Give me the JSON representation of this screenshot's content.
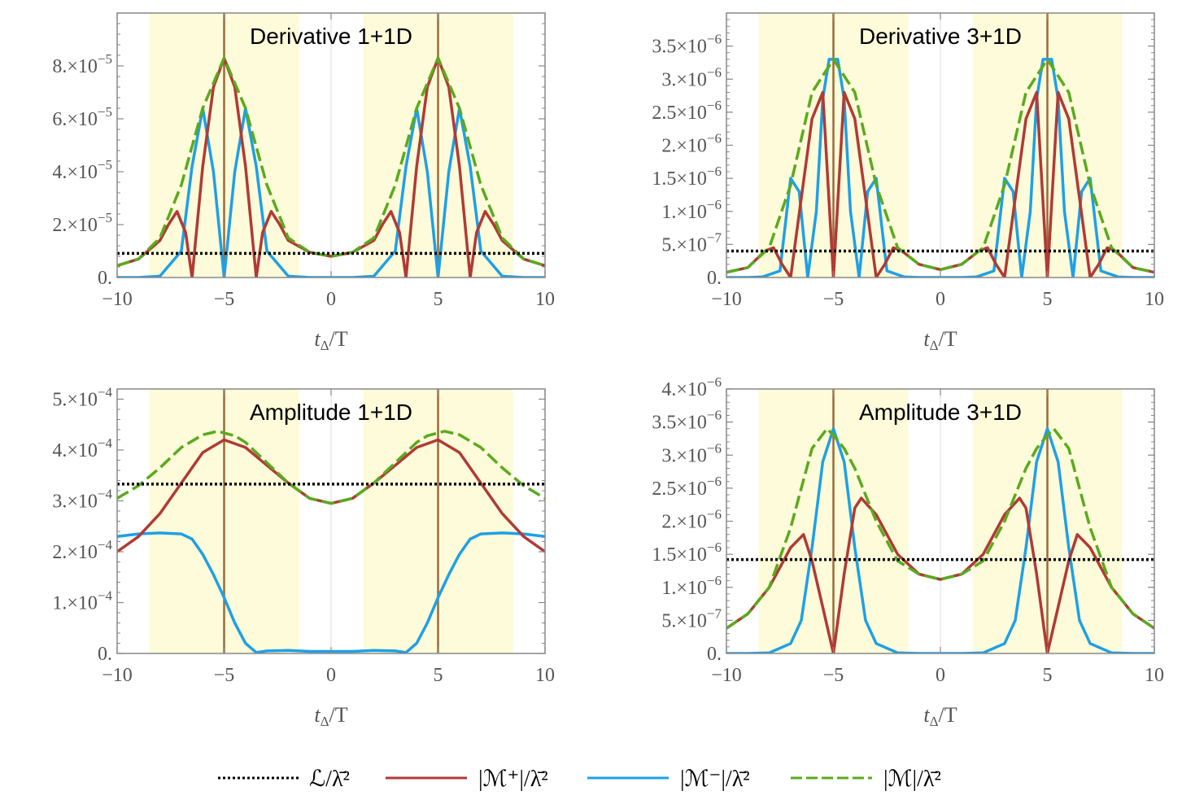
{
  "legend": [
    {
      "key": "L",
      "label": "ℒ/λ̄²",
      "color": "#000000",
      "dash": "dotted"
    },
    {
      "key": "Mp",
      "label": "|ℳ⁺|/λ̄²",
      "color": "#b03a35",
      "dash": "solid"
    },
    {
      "key": "Mm",
      "label": "|ℳ⁻|/λ̄²",
      "color": "#1ea0e6",
      "dash": "solid"
    },
    {
      "key": "M",
      "label": "|ℳ|/λ̄²",
      "color": "#5aaa1e",
      "dash": "dashed"
    }
  ],
  "colors": {
    "shade": "#fdfbd9",
    "vline": "#9c6a3a",
    "frame": "#888888",
    "tick_text": "#555555"
  },
  "chart_data": [
    {
      "type": "line",
      "title": "Derivative 1+1D",
      "xlabel": "tΔ/T",
      "xlim": [
        -10,
        10
      ],
      "ylim": [
        0,
        0.0001
      ],
      "xticks": [
        -10,
        -5,
        0,
        5,
        10
      ],
      "xtick_labels": [
        "−10",
        "−5",
        "0",
        "5",
        "10"
      ],
      "yticks": [
        0,
        2e-05,
        4e-05,
        6e-05,
        8e-05
      ],
      "ytick_labels": [
        [
          "0.",
          ""
        ],
        [
          "2.×10",
          "−5"
        ],
        [
          "4.×10",
          "−5"
        ],
        [
          "6.×10",
          "−5"
        ],
        [
          "8.×10",
          "−5"
        ]
      ],
      "shaded_regions": [
        [
          -8.5,
          -1.5
        ],
        [
          1.5,
          8.5
        ]
      ],
      "vlines": [
        -5,
        5
      ],
      "series": [
        {
          "name": "L",
          "constant": 9.1e-06
        },
        {
          "name": "M",
          "x": [
            -10,
            -9,
            -8,
            -7,
            -6,
            -5,
            -4,
            -3,
            -2,
            -1,
            0,
            1,
            2,
            3,
            4,
            5,
            6,
            7,
            8,
            9,
            10
          ],
          "y": [
            4.5e-06,
            7e-06,
            1.5e-05,
            3.5e-05,
            6.4e-05,
            8.3e-05,
            6.4e-05,
            3.5e-05,
            1.5e-05,
            9.5e-06,
            8e-06,
            9.5e-06,
            1.5e-05,
            3.5e-05,
            6.4e-05,
            8.3e-05,
            6.4e-05,
            3.5e-05,
            1.5e-05,
            7e-06,
            4.5e-06
          ]
        },
        {
          "name": "Mp",
          "x": [
            -10,
            -9,
            -8,
            -7.6,
            -7.2,
            -6.8,
            -6.5,
            -6,
            -5.5,
            -5,
            -4.5,
            -4,
            -3.5,
            -3.2,
            -2.8,
            -2.4,
            -2,
            -1,
            0,
            1,
            2,
            2.4,
            2.8,
            3.2,
            3.5,
            4,
            4.5,
            5,
            5.5,
            6,
            6.5,
            6.8,
            7.2,
            7.6,
            8,
            9,
            10
          ],
          "y": [
            4.5e-06,
            7e-06,
            1.4e-05,
            2e-05,
            2.5e-05,
            1.7e-05,
            0,
            4.2e-05,
            7.2e-05,
            8.3e-05,
            7.2e-05,
            4.2e-05,
            0,
            1.7e-05,
            2.5e-05,
            2e-05,
            1.4e-05,
            9.5e-06,
            8e-06,
            9.5e-06,
            1.4e-05,
            2e-05,
            2.5e-05,
            1.7e-05,
            0,
            4.2e-05,
            7.2e-05,
            8.3e-05,
            7.2e-05,
            4.2e-05,
            0,
            1.7e-05,
            2.5e-05,
            2e-05,
            1.4e-05,
            7e-06,
            4.5e-06
          ]
        },
        {
          "name": "Mm",
          "x": [
            -10,
            -9,
            -8,
            -7,
            -6.5,
            -6,
            -5.5,
            -5,
            -4.5,
            -4,
            -3.5,
            -3,
            -2,
            -1,
            0,
            1,
            2,
            3,
            3.5,
            4,
            4.5,
            5,
            5.5,
            6,
            6.5,
            7,
            8,
            9,
            10
          ],
          "y": [
            0,
            0,
            5e-07,
            1e-05,
            4.2e-05,
            6.4e-05,
            4e-05,
            0,
            4e-05,
            6.4e-05,
            4.2e-05,
            1e-05,
            5e-07,
            0,
            0,
            0,
            5e-07,
            1e-05,
            4.2e-05,
            6.4e-05,
            4e-05,
            0,
            4e-05,
            6.4e-05,
            4.2e-05,
            1e-05,
            5e-07,
            0,
            0
          ]
        }
      ]
    },
    {
      "type": "line",
      "title": "Derivative 3+1D",
      "xlabel": "tΔ/T",
      "xlim": [
        -10,
        10
      ],
      "ylim": [
        0,
        4e-06
      ],
      "xticks": [
        -10,
        -5,
        0,
        5,
        10
      ],
      "xtick_labels": [
        "−10",
        "−5",
        "0",
        "5",
        "10"
      ],
      "yticks": [
        0,
        5e-07,
        1e-06,
        1.5e-06,
        2e-06,
        2.5e-06,
        3e-06,
        3.5e-06
      ],
      "ytick_labels": [
        [
          "0.",
          ""
        ],
        [
          "5.×10",
          "−7"
        ],
        [
          "1.×10",
          "−6"
        ],
        [
          "1.5×10",
          "−6"
        ],
        [
          "2.×10",
          "−6"
        ],
        [
          "2.5×10",
          "−6"
        ],
        [
          "3.×10",
          "−6"
        ],
        [
          "3.5×10",
          "−6"
        ]
      ],
      "shaded_regions": [
        [
          -8.5,
          -1.5
        ],
        [
          1.5,
          8.5
        ]
      ],
      "vlines": [
        -5,
        5
      ],
      "series": [
        {
          "name": "L",
          "constant": 4e-07
        },
        {
          "name": "M",
          "x": [
            -10,
            -9,
            -8,
            -7,
            -6,
            -5,
            -4,
            -3,
            -2,
            -1,
            0,
            1,
            2,
            3,
            4,
            5,
            6,
            7,
            8,
            9,
            10
          ],
          "y": [
            8e-08,
            1.5e-07,
            4.5e-07,
            1.4e-06,
            2.8e-06,
            3.3e-06,
            2.8e-06,
            1.4e-06,
            4.5e-07,
            2e-07,
            1.2e-07,
            2e-07,
            4.5e-07,
            1.4e-06,
            2.8e-06,
            3.3e-06,
            2.8e-06,
            1.4e-06,
            4.5e-07,
            1.5e-07,
            8e-08
          ]
        },
        {
          "name": "Mp",
          "x": [
            -10,
            -9,
            -8.2,
            -7.8,
            -7.4,
            -7,
            -6.5,
            -6,
            -5.5,
            -5,
            -4.5,
            -4,
            -3.5,
            -3,
            -2.6,
            -2.2,
            -1.8,
            -1,
            0,
            1,
            1.8,
            2.2,
            2.6,
            3,
            3.5,
            4,
            4.5,
            5,
            5.5,
            6,
            6.5,
            7,
            7.4,
            7.8,
            8.2,
            9,
            10
          ],
          "y": [
            8e-08,
            1.5e-07,
            4e-07,
            4.5e-07,
            2e-07,
            0,
            1.2e-06,
            2.4e-06,
            2.8e-06,
            0,
            2.8e-06,
            2.4e-06,
            1.2e-06,
            0,
            2e-07,
            4.5e-07,
            4e-07,
            2e-07,
            1.2e-07,
            2e-07,
            4e-07,
            4.5e-07,
            2e-07,
            0,
            1.2e-06,
            2.4e-06,
            2.8e-06,
            0,
            2.8e-06,
            2.4e-06,
            1.2e-06,
            0,
            2e-07,
            4.5e-07,
            4e-07,
            1.5e-07,
            8e-08
          ]
        },
        {
          "name": "Mm",
          "x": [
            -10,
            -9,
            -8.3,
            -7.5,
            -7,
            -6.6,
            -6.2,
            -5.8,
            -5.5,
            -5.2,
            -5,
            -4.8,
            -4.5,
            -4.2,
            -3.8,
            -3.4,
            -3,
            -2.5,
            -1.7,
            -1,
            0,
            1,
            1.7,
            2.5,
            3,
            3.4,
            3.8,
            4.2,
            4.5,
            4.8,
            5,
            5.2,
            5.5,
            5.8,
            6.2,
            6.6,
            7,
            7.5,
            8.3,
            9,
            10
          ],
          "y": [
            0,
            0,
            1e-08,
            1e-07,
            1.5e-06,
            1.3e-06,
            0,
            1e-06,
            2.7e-06,
            3.3e-06,
            3.3e-06,
            3.3e-06,
            2.7e-06,
            1e-06,
            0,
            1.3e-06,
            1.5e-06,
            1e-07,
            1e-08,
            0,
            0,
            0,
            1e-08,
            1e-07,
            1.5e-06,
            1.3e-06,
            0,
            1e-06,
            2.7e-06,
            3.3e-06,
            3.3e-06,
            3.3e-06,
            2.7e-06,
            1e-06,
            0,
            1.3e-06,
            1.5e-06,
            1e-07,
            1e-08,
            0,
            0
          ]
        }
      ]
    },
    {
      "type": "line",
      "title": "Amplitude 1+1D",
      "xlabel": "tΔ/T",
      "xlim": [
        -10,
        10
      ],
      "ylim": [
        0,
        0.00052
      ],
      "xticks": [
        -10,
        -5,
        0,
        5,
        10
      ],
      "xtick_labels": [
        "−10",
        "−5",
        "0",
        "5",
        "10"
      ],
      "yticks": [
        0,
        0.0001,
        0.0002,
        0.0003,
        0.0004,
        0.0005
      ],
      "ytick_labels": [
        [
          "0.",
          ""
        ],
        [
          "1.×10",
          "−4"
        ],
        [
          "2.×10",
          "−4"
        ],
        [
          "3.×10",
          "−4"
        ],
        [
          "4.×10",
          "−4"
        ],
        [
          "5.×10",
          "−4"
        ]
      ],
      "shaded_regions": [
        [
          -8.5,
          -1.5
        ],
        [
          1.5,
          8.5
        ]
      ],
      "vlines": [
        -5,
        5
      ],
      "series": [
        {
          "name": "L",
          "constant": 0.000333
        },
        {
          "name": "Mp",
          "x": [
            -10,
            -9,
            -8,
            -7,
            -6,
            -5,
            -4,
            -3,
            -2,
            -1,
            0,
            1,
            2,
            3,
            4,
            5,
            6,
            7,
            8,
            9,
            10
          ],
          "y": [
            0.0002,
            0.00023,
            0.000275,
            0.000335,
            0.000395,
            0.00042,
            0.000405,
            0.00037,
            0.000335,
            0.000305,
            0.000295,
            0.000305,
            0.000335,
            0.00037,
            0.000405,
            0.00042,
            0.000395,
            0.000335,
            0.000275,
            0.00023,
            0.0002
          ]
        },
        {
          "name": "M",
          "x": [
            -10,
            -9,
            -8,
            -7,
            -6,
            -5.3,
            -4.5,
            -4,
            -3,
            -2,
            -1,
            0,
            1,
            2,
            3,
            4,
            4.5,
            5.3,
            6,
            7,
            8,
            9,
            10
          ],
          "y": [
            0.000305,
            0.00033,
            0.000365,
            0.000405,
            0.00043,
            0.000437,
            0.000428,
            0.000415,
            0.000375,
            0.000335,
            0.000305,
            0.000295,
            0.000305,
            0.000335,
            0.000375,
            0.000415,
            0.000428,
            0.000437,
            0.00043,
            0.000405,
            0.000365,
            0.00033,
            0.000305
          ]
        },
        {
          "name": "Mm",
          "x": [
            -10,
            -9,
            -8,
            -7,
            -6.5,
            -6,
            -5.5,
            -5,
            -4.5,
            -4,
            -3.5,
            -3,
            -2,
            -1,
            0,
            1,
            2,
            3,
            3.5,
            4,
            4.5,
            5,
            5.5,
            6,
            6.5,
            7,
            8,
            9,
            10
          ],
          "y": [
            0.00023,
            0.000235,
            0.000237,
            0.000235,
            0.000225,
            0.000195,
            0.000155,
            0.00011,
            6e-05,
            2e-05,
            2e-06,
            5e-06,
            6e-06,
            4e-06,
            4e-06,
            4e-06,
            6e-06,
            5e-06,
            2e-06,
            2e-05,
            6e-05,
            0.00011,
            0.000155,
            0.000195,
            0.000225,
            0.000235,
            0.000237,
            0.000235,
            0.00023
          ]
        }
      ]
    },
    {
      "type": "line",
      "title": "Amplitude 3+1D",
      "xlabel": "tΔ/T",
      "xlim": [
        -10,
        10
      ],
      "ylim": [
        0,
        4e-06
      ],
      "xticks": [
        -10,
        -5,
        0,
        5,
        10
      ],
      "xtick_labels": [
        "−10",
        "−5",
        "0",
        "5",
        "10"
      ],
      "yticks": [
        0,
        5e-07,
        1e-06,
        1.5e-06,
        2e-06,
        2.5e-06,
        3e-06,
        3.5e-06,
        4e-06
      ],
      "ytick_labels": [
        [
          "0.",
          ""
        ],
        [
          "5.×10",
          "−7"
        ],
        [
          "1.×10",
          "−6"
        ],
        [
          "1.5×10",
          "−6"
        ],
        [
          "2.×10",
          "−6"
        ],
        [
          "2.5×10",
          "−6"
        ],
        [
          "3.×10",
          "−6"
        ],
        [
          "3.5×10",
          "−6"
        ],
        [
          "4.×10",
          "−6"
        ]
      ],
      "shaded_regions": [
        [
          -8.5,
          -1.5
        ],
        [
          1.5,
          8.5
        ]
      ],
      "vlines": [
        -5,
        5
      ],
      "series": [
        {
          "name": "L",
          "constant": 1.42e-06
        },
        {
          "name": "M",
          "x": [
            -10,
            -9,
            -8,
            -7,
            -6,
            -5.3,
            -5,
            -4.5,
            -4,
            -3,
            -2,
            -1,
            0,
            1,
            2,
            3,
            4,
            4.5,
            5,
            5.3,
            6,
            7,
            8,
            9,
            10
          ],
          "y": [
            3.8e-07,
            6e-07,
            1e-06,
            1.9e-06,
            3.1e-06,
            3.4e-06,
            3.3e-06,
            3.1e-06,
            2.8e-06,
            2e-06,
            1.4e-06,
            1.2e-06,
            1.12e-06,
            1.2e-06,
            1.4e-06,
            2e-06,
            2.8e-06,
            3.1e-06,
            3.3e-06,
            3.4e-06,
            3.1e-06,
            1.9e-06,
            1e-06,
            6e-07,
            3.8e-07
          ]
        },
        {
          "name": "Mp",
          "x": [
            -10,
            -9,
            -8,
            -7,
            -6.4,
            -6,
            -5.5,
            -5,
            -4.5,
            -4,
            -3.7,
            -3,
            -2,
            -1,
            0,
            1,
            2,
            3,
            3.7,
            4,
            4.5,
            5,
            5.5,
            6,
            6.4,
            7,
            8,
            9,
            10
          ],
          "y": [
            3.8e-07,
            6e-07,
            1e-06,
            1.6e-06,
            1.8e-06,
            1.4e-06,
            7e-07,
            0,
            1.2e-06,
            2.2e-06,
            2.35e-06,
            2.1e-06,
            1.5e-06,
            1.2e-06,
            1.12e-06,
            1.2e-06,
            1.5e-06,
            2.1e-06,
            2.35e-06,
            2.2e-06,
            1.2e-06,
            0,
            7e-07,
            1.4e-06,
            1.8e-06,
            1.6e-06,
            1e-06,
            6e-07,
            3.8e-07
          ]
        },
        {
          "name": "Mm",
          "x": [
            -10,
            -9,
            -8,
            -7,
            -6.5,
            -6,
            -5.5,
            -5,
            -4.5,
            -4,
            -3.5,
            -3,
            -2,
            -1,
            0,
            1,
            2,
            3,
            3.5,
            4,
            4.5,
            5,
            5.5,
            6,
            6.5,
            7,
            8,
            9,
            10
          ],
          "y": [
            0,
            0,
            1e-08,
            1.5e-07,
            5e-07,
            1.6e-06,
            2.9e-06,
            3.4e-06,
            2.9e-06,
            1.6e-06,
            5e-07,
            1.5e-07,
            1e-08,
            0,
            0,
            0,
            1e-08,
            1.5e-07,
            5e-07,
            1.6e-06,
            2.9e-06,
            3.4e-06,
            2.9e-06,
            1.6e-06,
            5e-07,
            1.5e-07,
            1e-08,
            0,
            0
          ]
        }
      ]
    }
  ]
}
